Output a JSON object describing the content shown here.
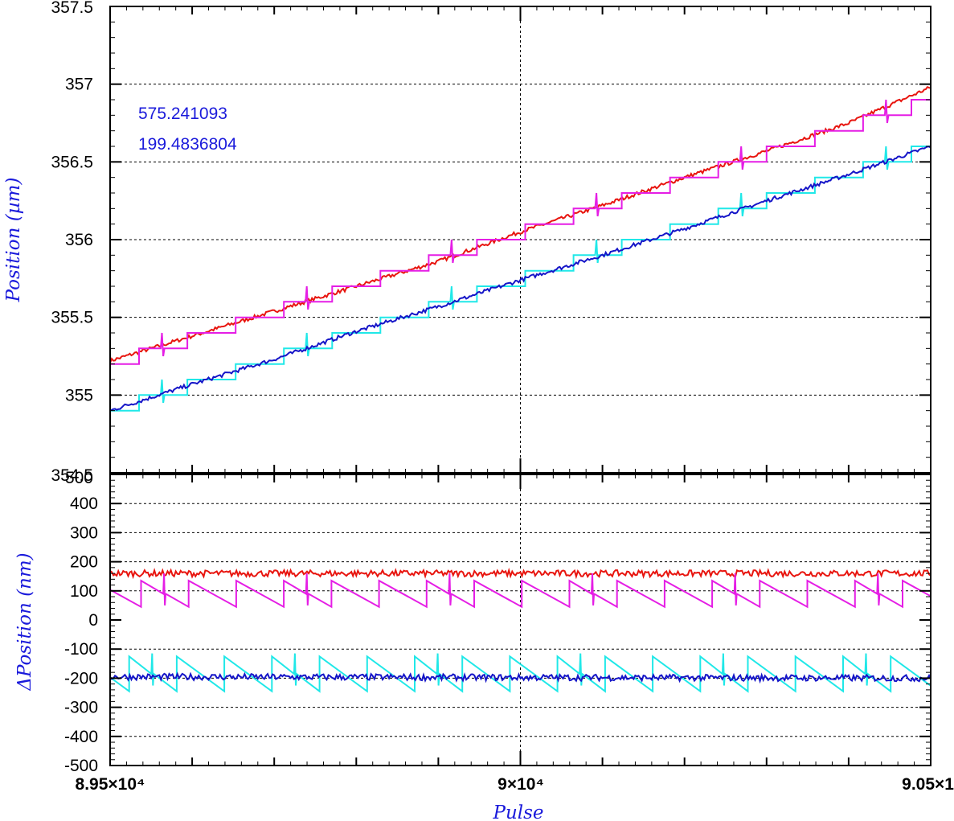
{
  "chart_data": [
    {
      "type": "line",
      "panel": "top",
      "ylabel": "Position (µm)",
      "ylim": [
        354.5,
        357.5
      ],
      "xlim": [
        89500,
        90500
      ],
      "y_ticks": [
        "355",
        "355.5",
        "356",
        "356.5",
        "357",
        "357.5"
      ],
      "bottom_tick_label": "354.5",
      "annotations": [
        "575.241093",
        "199.4836804"
      ],
      "grid": true,
      "colors": [
        "#e8150f",
        "#e51ee5",
        "#20e8e8",
        "#1515c8"
      ],
      "series": [
        {
          "color": "#e8150f",
          "style": "noisy",
          "x": [
            89500,
            89600,
            89700,
            89800,
            89900,
            90000,
            90100,
            90200,
            90300,
            90400,
            90500
          ],
          "values": [
            355.22,
            355.38,
            355.54,
            355.7,
            355.86,
            356.05,
            356.22,
            356.4,
            356.57,
            356.75,
            356.98
          ]
        },
        {
          "color": "#e51ee5",
          "style": "staircase",
          "x": [
            89500,
            90500
          ],
          "values": [
            355.2,
            356.9
          ],
          "step": 0.1
        },
        {
          "color": "#20e8e8",
          "style": "staircase",
          "x": [
            89500,
            90500
          ],
          "values": [
            354.9,
            356.6
          ],
          "step": 0.1
        },
        {
          "color": "#1515c8",
          "style": "noisy",
          "x": [
            89500,
            89600,
            89700,
            89800,
            89900,
            90000,
            90100,
            90200,
            90300,
            90400,
            90500
          ],
          "values": [
            354.9,
            355.07,
            355.23,
            355.41,
            355.57,
            355.74,
            355.9,
            356.07,
            356.25,
            356.42,
            356.6
          ]
        }
      ]
    },
    {
      "type": "line",
      "panel": "bottom",
      "ylabel": "ΔPosition (nm)",
      "xlabel": "Pulse",
      "ylim": [
        -500,
        500
      ],
      "xlim": [
        89500,
        90500
      ],
      "y_ticks": [
        "-500",
        "-400",
        "-300",
        "-200",
        "-100",
        "0",
        "100",
        "200",
        "300",
        "400",
        "500"
      ],
      "x_tick_labels": [
        "8.95×10⁴",
        "9×10⁴",
        "9.05×1"
      ],
      "grid": true,
      "series": [
        {
          "color": "#e8150f",
          "style": "noisy",
          "x": [
            89500,
            90500
          ],
          "values": [
            160,
            160
          ]
        },
        {
          "color": "#e51ee5",
          "style": "sawtooth",
          "x": [
            89500,
            90500
          ],
          "range": [
            45,
            135
          ],
          "period_pulses": 58
        },
        {
          "color": "#20e8e8",
          "style": "sawtooth",
          "x": [
            89500,
            90500
          ],
          "range": [
            -245,
            -125
          ],
          "period_pulses": 58
        },
        {
          "color": "#1515c8",
          "style": "noisy",
          "x": [
            89500,
            90500
          ],
          "values": [
            -195,
            -200
          ]
        }
      ]
    }
  ]
}
